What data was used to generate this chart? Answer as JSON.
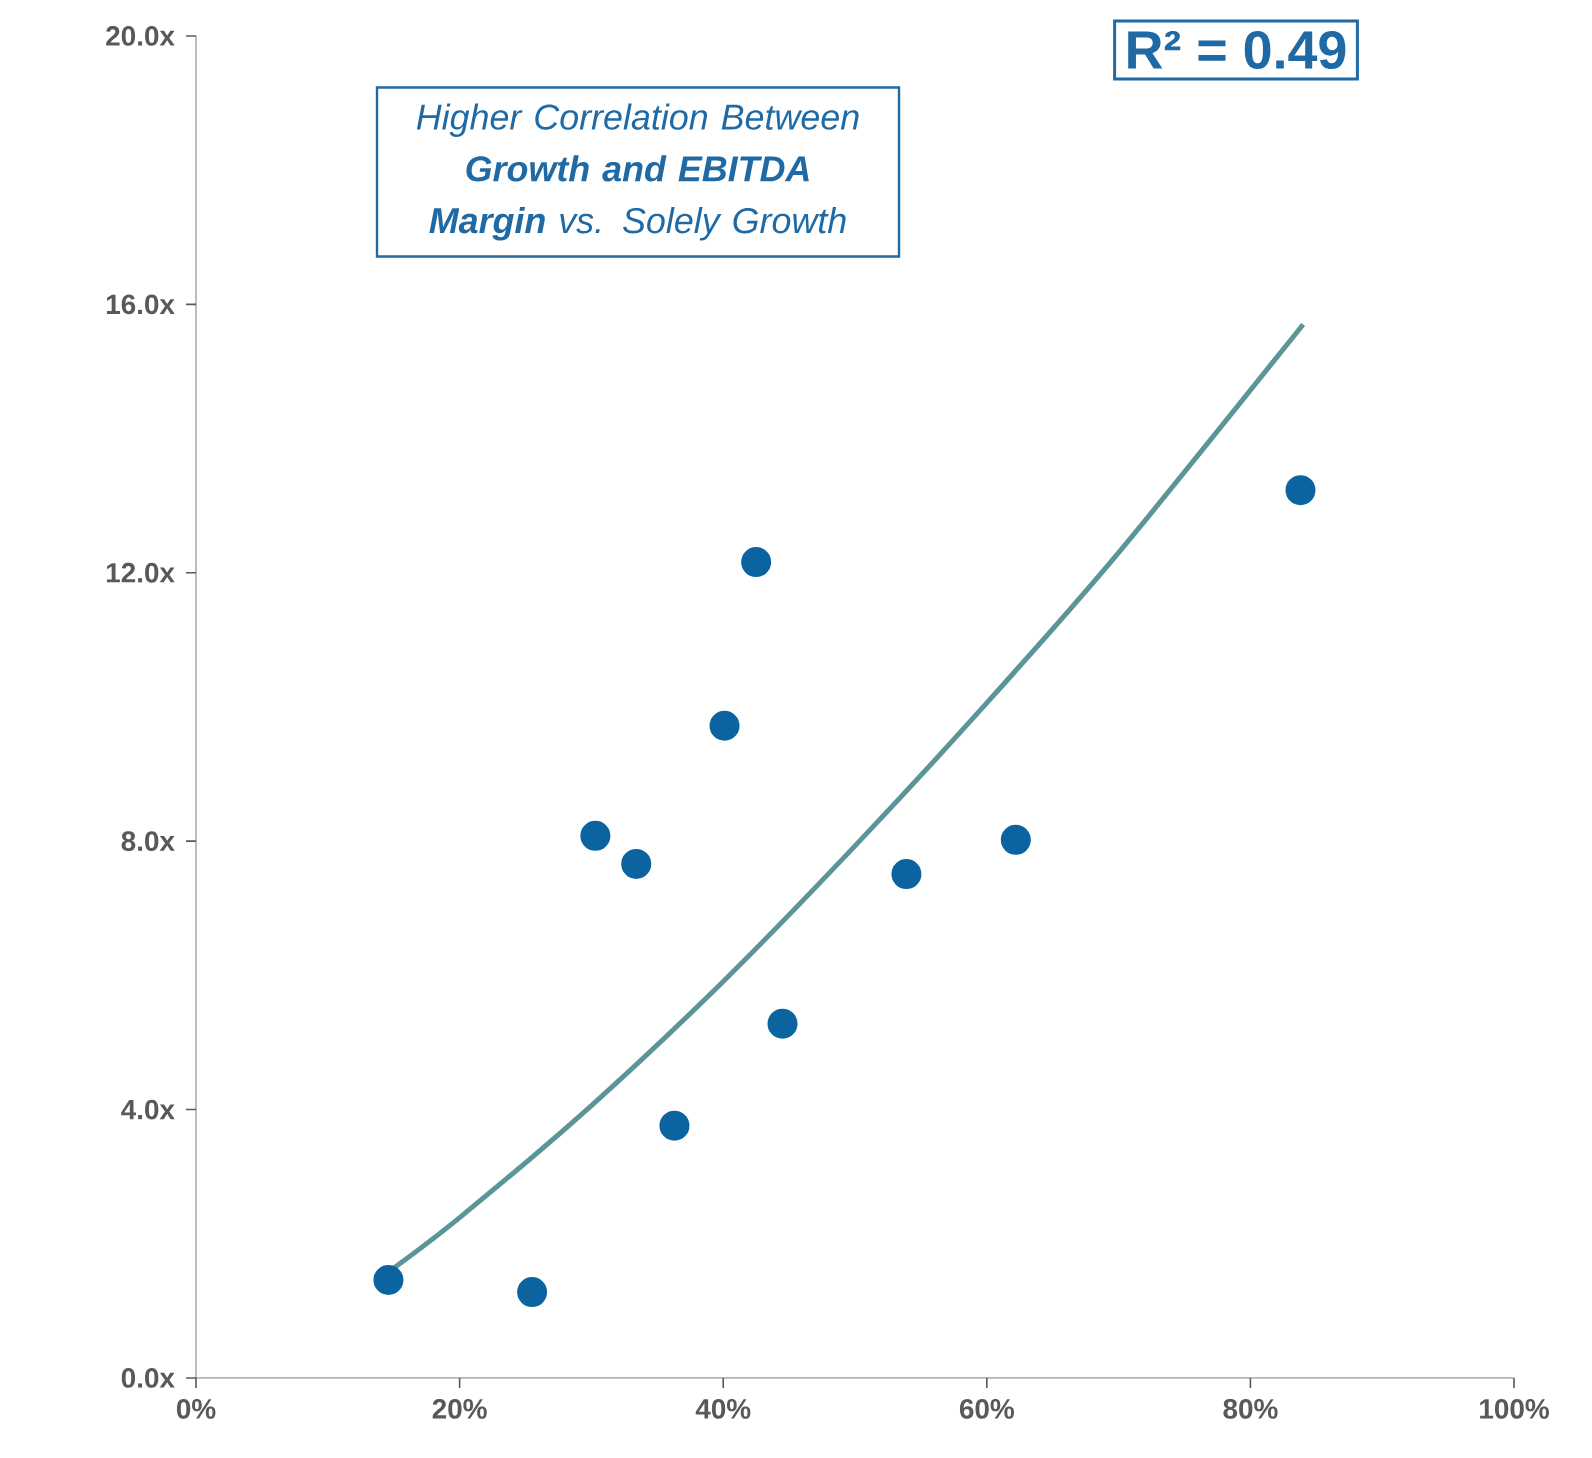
{
  "chart_data": {
    "type": "scatter",
    "x": [
      14.6,
      25.5,
      30.3,
      33.4,
      36.3,
      40.1,
      42.5,
      44.5,
      53.9,
      62.2,
      83.8
    ],
    "series": [
      {
        "color": "#0b64a0",
        "values": [
          1.46,
          1.28,
          8.08,
          7.66,
          3.76,
          9.72,
          12.16,
          5.28,
          7.51,
          8.02,
          13.23
        ]
      },
      {
        "type": "line",
        "color": "#5b9597",
        "marker": "none",
        "x": [
          14.6,
          20,
          30,
          40,
          50,
          60,
          70,
          84
        ],
        "values": [
          1.58,
          2.39,
          4.06,
          5.91,
          7.93,
          10.06,
          12.3,
          15.7
        ]
      }
    ],
    "xlim": [
      0,
      100
    ],
    "xticks": [
      {
        "value": 0,
        "label": "0%"
      },
      {
        "value": 20,
        "label": "20%"
      },
      {
        "value": 40,
        "label": "40%"
      },
      {
        "value": 60,
        "label": "60%"
      },
      {
        "value": 80,
        "label": "80%"
      },
      {
        "value": 100,
        "label": "100%"
      }
    ],
    "ylim": [
      0,
      20
    ],
    "yticks": [
      {
        "value": 0,
        "label": "0.0x"
      },
      {
        "value": 4,
        "label": "4.0x"
      },
      {
        "value": 8,
        "label": "8.0x"
      },
      {
        "value": 12,
        "label": "12.0x"
      },
      {
        "value": 16,
        "label": "16.0x"
      },
      {
        "value": 20,
        "label": "20.0x"
      }
    ],
    "annotations": [
      "Higher Correlation Between **Growth and EBITDA Margin** vs. Solely Growth",
      "R² = 0.49"
    ],
    "marker": "circle",
    "grid": false
  }
}
